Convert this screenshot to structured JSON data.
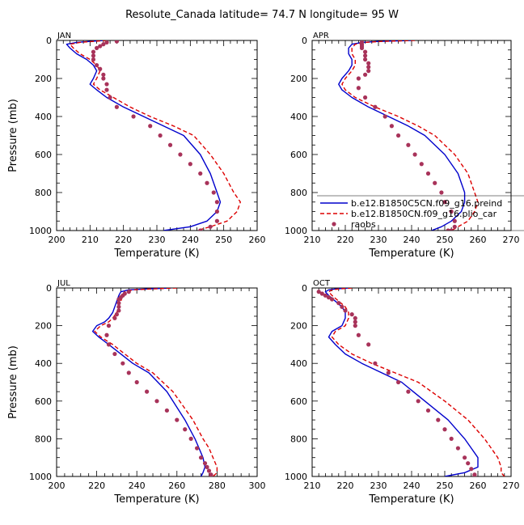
{
  "figure": {
    "title": "Resolute_Canada   latitude= 74.7 N longitude= 95 W"
  },
  "legend": {
    "placement": "inside APR panel, lower right",
    "entries": [
      {
        "label": "b.e12.B1850C5CN.f09_g16.preind",
        "style": "solid-line",
        "color": "#0000cc"
      },
      {
        "label": "b.e12.B1850CN.f09_g16.plio_car",
        "style": "dashed-line",
        "color": "#dd0000"
      },
      {
        "label": "raobs",
        "style": "marker",
        "color": "#a8335a"
      }
    ]
  },
  "chart_data": [
    {
      "type": "line",
      "title": "JAN",
      "xlabel": "Temperature (K)",
      "ylabel": "Pressure (mb)",
      "xlim": [
        200,
        260
      ],
      "xticks": [
        200,
        210,
        220,
        230,
        240,
        250,
        260
      ],
      "ylim": [
        1000,
        0
      ],
      "yticks": [
        0,
        200,
        400,
        600,
        800,
        1000
      ],
      "series": [
        {
          "name": "b.e12.B1850C5CN.f09_g16.preind",
          "color": "#0000cc",
          "dash": "solid",
          "x": [
            214,
            210,
            206,
            203,
            204,
            206,
            209,
            211,
            212,
            211,
            210,
            212,
            215,
            220,
            226,
            232,
            238,
            243,
            246,
            248,
            249,
            248,
            245,
            240,
            232
          ],
          "y": [
            0,
            5,
            10,
            20,
            40,
            70,
            100,
            130,
            160,
            200,
            230,
            260,
            300,
            350,
            400,
            450,
            500,
            600,
            700,
            800,
            850,
            900,
            950,
            980,
            1000
          ]
        },
        {
          "name": "b.e12.B1850CN.f09_g16.plio_car",
          "color": "#dd0000",
          "dash": "dashed",
          "x": [
            215,
            211,
            207,
            204,
            205,
            207,
            210,
            212,
            213,
            212,
            211,
            213,
            217,
            222,
            228,
            235,
            241,
            246,
            250,
            253,
            255,
            254,
            251,
            246,
            242
          ],
          "y": [
            0,
            5,
            10,
            20,
            40,
            70,
            100,
            130,
            160,
            200,
            230,
            260,
            300,
            350,
            400,
            450,
            500,
            600,
            700,
            800,
            850,
            900,
            950,
            980,
            1000
          ]
        },
        {
          "name": "raobs",
          "color": "#a8335a",
          "marker": "circle",
          "x": [
            218,
            215,
            214,
            213,
            212,
            211,
            211,
            211,
            212,
            213,
            214,
            214,
            215,
            215,
            216,
            218,
            223,
            228,
            231,
            234,
            237,
            240,
            243,
            245,
            247,
            248,
            248,
            248,
            246,
            243
          ],
          "y": [
            5,
            10,
            20,
            30,
            40,
            60,
            80,
            100,
            130,
            150,
            180,
            200,
            230,
            260,
            300,
            350,
            400,
            450,
            500,
            550,
            600,
            650,
            700,
            750,
            800,
            850,
            900,
            950,
            980,
            1000
          ]
        }
      ]
    },
    {
      "type": "line",
      "title": "APR",
      "xlabel": "Temperature (K)",
      "ylabel": "",
      "xlim": [
        210,
        270
      ],
      "xticks": [
        210,
        220,
        230,
        240,
        250,
        260,
        270
      ],
      "ylim": [
        1000,
        0
      ],
      "yticks": [
        0,
        200,
        400,
        600,
        800,
        1000
      ],
      "series": [
        {
          "name": "b.e12.B1850C5CN.f09_g16.preind",
          "color": "#0000cc",
          "dash": "solid",
          "x": [
            240,
            230,
            225,
            222,
            221,
            221,
            222,
            222,
            221,
            219,
            218,
            219,
            222,
            227,
            233,
            239,
            244,
            250,
            254,
            256,
            256,
            255,
            252,
            249,
            246
          ],
          "y": [
            0,
            5,
            10,
            20,
            40,
            70,
            100,
            130,
            160,
            200,
            230,
            260,
            300,
            350,
            400,
            450,
            500,
            600,
            700,
            800,
            850,
            900,
            950,
            980,
            1000
          ]
        },
        {
          "name": "b.e12.B1850CN.f09_g16.plio_car",
          "color": "#dd0000",
          "dash": "dashed",
          "x": [
            241,
            231,
            226,
            223,
            222,
            222,
            223,
            223,
            222,
            220,
            219,
            220,
            223,
            229,
            236,
            242,
            247,
            253,
            257,
            259,
            260,
            259,
            257,
            254,
            252
          ],
          "y": [
            0,
            5,
            10,
            20,
            40,
            70,
            100,
            130,
            160,
            200,
            230,
            260,
            300,
            350,
            400,
            450,
            500,
            600,
            700,
            800,
            850,
            900,
            950,
            980,
            1000
          ]
        },
        {
          "name": "raobs",
          "color": "#a8335a",
          "marker": "circle",
          "x": [
            225,
            225,
            225,
            225,
            226,
            226,
            226,
            227,
            227,
            227,
            226,
            224,
            224,
            226,
            229,
            232,
            234,
            236,
            239,
            241,
            243,
            245,
            247,
            249,
            250,
            252,
            253,
            253,
            252,
            251
          ],
          "y": [
            10,
            20,
            30,
            40,
            60,
            80,
            100,
            120,
            140,
            160,
            180,
            200,
            250,
            300,
            350,
            400,
            450,
            500,
            550,
            600,
            650,
            700,
            750,
            800,
            850,
            900,
            950,
            980,
            1000,
            1000
          ]
        }
      ]
    },
    {
      "type": "line",
      "title": "JUL",
      "xlabel": "Temperature (K)",
      "ylabel": "Pressure (mb)",
      "xlim": [
        200,
        300
      ],
      "xticks": [
        200,
        220,
        240,
        260,
        280,
        300
      ],
      "ylim": [
        1000,
        0
      ],
      "yticks": [
        0,
        200,
        400,
        600,
        800,
        1000
      ],
      "series": [
        {
          "name": "b.e12.B1850C5CN.f09_g16.preind",
          "color": "#0000cc",
          "dash": "solid",
          "x": [
            257,
            245,
            236,
            232,
            231,
            230,
            229,
            228,
            226,
            224,
            220,
            218,
            221,
            226,
            232,
            238,
            246,
            255,
            264,
            269,
            271,
            273,
            274,
            273,
            272
          ],
          "y": [
            0,
            5,
            10,
            20,
            40,
            70,
            100,
            130,
            160,
            180,
            200,
            230,
            260,
            300,
            350,
            400,
            450,
            550,
            700,
            800,
            850,
            900,
            950,
            980,
            1000
          ]
        },
        {
          "name": "b.e12.B1850CN.f09_g16.plio_car",
          "color": "#dd0000",
          "dash": "dashed",
          "x": [
            260,
            247,
            238,
            234,
            233,
            232,
            231,
            230,
            228,
            226,
            222,
            219,
            222,
            228,
            234,
            240,
            248,
            258,
            268,
            273,
            276,
            278,
            280,
            280,
            278
          ],
          "y": [
            0,
            5,
            10,
            20,
            40,
            70,
            100,
            130,
            160,
            180,
            200,
            230,
            260,
            300,
            350,
            400,
            450,
            550,
            700,
            800,
            850,
            900,
            950,
            980,
            1000
          ]
        },
        {
          "name": "raobs",
          "color": "#a8335a",
          "marker": "circle",
          "x": [
            236,
            234,
            233,
            232,
            231,
            231,
            231,
            231,
            230,
            229,
            226,
            225,
            226,
            229,
            233,
            236,
            240,
            245,
            250,
            255,
            260,
            264,
            267,
            270,
            272,
            274,
            275,
            276,
            277,
            277
          ],
          "y": [
            20,
            30,
            40,
            50,
            60,
            80,
            100,
            120,
            140,
            160,
            200,
            250,
            300,
            350,
            400,
            450,
            500,
            550,
            600,
            650,
            700,
            750,
            800,
            850,
            900,
            930,
            950,
            970,
            990,
            1000
          ]
        }
      ]
    },
    {
      "type": "line",
      "title": "OCT",
      "xlabel": "Temperature (K)",
      "ylabel": "",
      "xlim": [
        210,
        270
      ],
      "xticks": [
        210,
        220,
        230,
        240,
        250,
        260,
        270
      ],
      "ylim": [
        1000,
        0
      ],
      "yticks": [
        0,
        200,
        400,
        600,
        800,
        1000
      ],
      "series": [
        {
          "name": "b.e12.B1850C5CN.f09_g16.preind",
          "color": "#0000cc",
          "dash": "solid",
          "x": [
            221,
            217,
            215,
            214,
            215,
            217,
            219,
            220,
            220,
            219,
            216,
            215,
            217,
            220,
            225,
            231,
            237,
            244,
            251,
            256,
            258,
            260,
            260,
            256,
            250
          ],
          "y": [
            0,
            5,
            10,
            20,
            40,
            70,
            100,
            130,
            160,
            200,
            230,
            260,
            300,
            350,
            400,
            450,
            500,
            600,
            700,
            800,
            850,
            900,
            950,
            980,
            1000
          ]
        },
        {
          "name": "b.e12.B1850CN.f09_g16.plio_car",
          "color": "#dd0000",
          "dash": "dashed",
          "x": [
            222,
            218,
            216,
            215,
            216,
            218,
            220,
            221,
            221,
            220,
            217,
            216,
            218,
            222,
            228,
            235,
            242,
            250,
            257,
            262,
            264,
            266,
            267,
            267,
            268
          ],
          "y": [
            0,
            5,
            10,
            20,
            40,
            70,
            100,
            130,
            160,
            200,
            230,
            260,
            300,
            350,
            400,
            450,
            500,
            600,
            700,
            800,
            850,
            900,
            950,
            980,
            1000
          ]
        },
        {
          "name": "raobs",
          "color": "#a8335a",
          "marker": "circle",
          "x": [
            212,
            213,
            214,
            215,
            216,
            218,
            219,
            220,
            222,
            223,
            223,
            223,
            224,
            227,
            229,
            233,
            236,
            239,
            242,
            245,
            248,
            250,
            252,
            254,
            256,
            257,
            258,
            259,
            259
          ],
          "y": [
            20,
            30,
            40,
            50,
            60,
            80,
            100,
            120,
            140,
            160,
            180,
            200,
            250,
            300,
            400,
            450,
            500,
            550,
            600,
            650,
            700,
            750,
            800,
            850,
            900,
            930,
            960,
            990,
            1000
          ]
        }
      ]
    }
  ]
}
